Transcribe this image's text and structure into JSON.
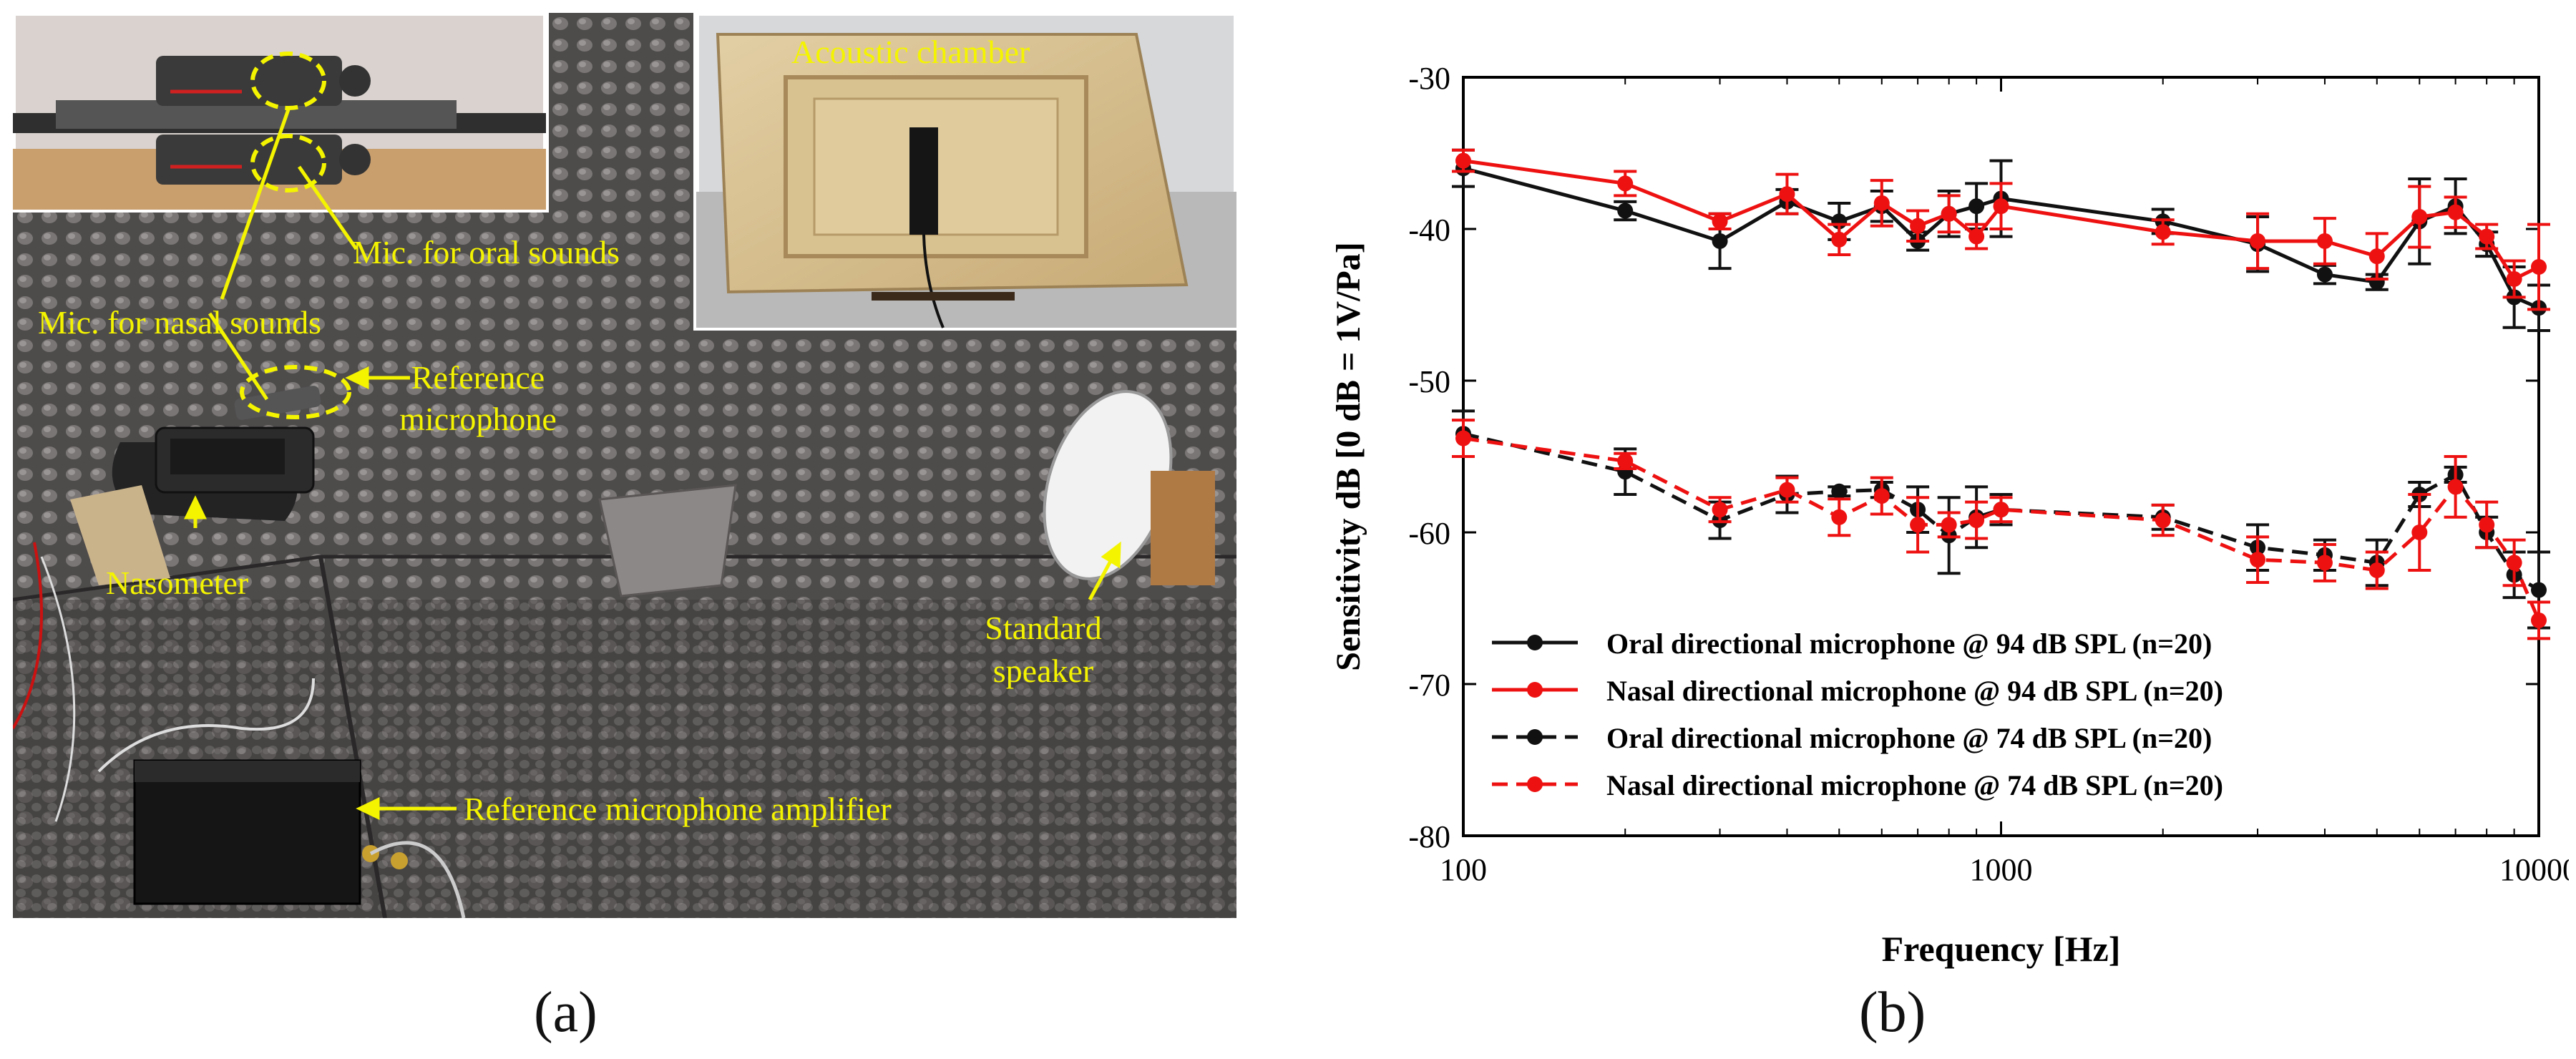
{
  "panel_a": {
    "labels": {
      "acoustic_chamber": "Acoustic chamber",
      "mic_oral": "Mic. for oral sounds",
      "mic_nasal": "Mic. for nasal sounds",
      "reference_mic_line1": "Reference",
      "reference_mic_line2": "microphone",
      "nasometer": "Nasometer",
      "speaker_line1": "Standard",
      "speaker_line2": "speaker",
      "ref_amp": "Reference microphone amplifier"
    },
    "caption": "(a)"
  },
  "panel_b": {
    "caption": "(b)"
  },
  "colors": {
    "annotation": "#f4f400",
    "red": "#ee1111",
    "black": "#111111"
  },
  "chart_data": {
    "type": "line",
    "title": "",
    "xlabel": "Frequency [Hz]",
    "ylabel": "Sensitivity dB [0 dB = 1V/Pa]",
    "xscale": "log",
    "xlim": [
      100,
      10000
    ],
    "ylim": [
      -80,
      -30
    ],
    "xticks": [
      100,
      1000,
      10000
    ],
    "yticks": [
      -30,
      -40,
      -50,
      -60,
      -70,
      -80
    ],
    "x": [
      100,
      200,
      300,
      400,
      500,
      600,
      700,
      800,
      900,
      1000,
      2000,
      3000,
      4000,
      5000,
      6000,
      7000,
      8000,
      9000,
      10000
    ],
    "series": [
      {
        "name": "Oral directional microphone @ 94 dB SPL (n=20)",
        "color": "#111111",
        "dashed": false,
        "values": [
          -36,
          -38.8,
          -40.8,
          -38.2,
          -39.5,
          -38.5,
          -40.8,
          -39,
          -38.5,
          -38,
          -39.5,
          -41,
          -43,
          -43.5,
          -39.5,
          -38.5,
          -41,
          -44.5,
          -45.2
        ],
        "errors": [
          1.2,
          0.6,
          1.8,
          0.8,
          1.2,
          1.0,
          0.6,
          1.5,
          1.5,
          2.5,
          0.8,
          1.8,
          0.6,
          0.5,
          2.8,
          1.8,
          0.8,
          2.0,
          1.5
        ]
      },
      {
        "name": "Nasal directional microphone @ 94 dB SPL (n=20)",
        "color": "#ee1111",
        "dashed": false,
        "values": [
          -35.5,
          -37,
          -39.5,
          -37.7,
          -40.7,
          -38.3,
          -39.8,
          -39,
          -40.5,
          -38.5,
          -40.2,
          -40.8,
          -40.8,
          -41.8,
          -39.2,
          -38.9,
          -40.5,
          -43.3,
          -42.5
        ],
        "errors": [
          0.7,
          0.8,
          0.5,
          1.3,
          1.0,
          1.5,
          1.0,
          1.2,
          0.8,
          1.5,
          0.8,
          1.8,
          1.5,
          1.5,
          2.0,
          1.0,
          0.8,
          1.2,
          2.8
        ]
      },
      {
        "name": "Oral directional microphone @ 74 dB SPL (n=20)",
        "color": "#111111",
        "dashed": true,
        "values": [
          -53.5,
          -56,
          -59.2,
          -57.5,
          -57.3,
          -57.2,
          -58.5,
          -60.2,
          -59,
          -58.5,
          -59,
          -61,
          -61.5,
          -62,
          -57.5,
          -56.2,
          -60,
          -62.8,
          -63.8
        ],
        "errors": [
          1.5,
          1.5,
          1.2,
          1.2,
          0.3,
          0.5,
          1.5,
          2.5,
          2.0,
          1.0,
          0.8,
          1.5,
          1.0,
          1.5,
          0.8,
          0.5,
          1.0,
          1.5,
          2.5
        ]
      },
      {
        "name": "Nasal directional microphone @ 74 dB SPL (n=20)",
        "color": "#ee1111",
        "dashed": true,
        "values": [
          -53.8,
          -55.3,
          -58.5,
          -57.2,
          -59,
          -57.6,
          -59.5,
          -59.5,
          -59.2,
          -58.5,
          -59.2,
          -61.8,
          -62,
          -62.5,
          -60,
          -57,
          -59.5,
          -62,
          -65.8
        ],
        "errors": [
          1.2,
          0.5,
          0.8,
          0.8,
          1.2,
          1.2,
          1.8,
          0.8,
          1.2,
          0.8,
          1.0,
          1.5,
          1.2,
          1.2,
          2.5,
          2.0,
          1.5,
          1.5,
          1.2
        ]
      }
    ],
    "legend_position": "bottom-left"
  }
}
